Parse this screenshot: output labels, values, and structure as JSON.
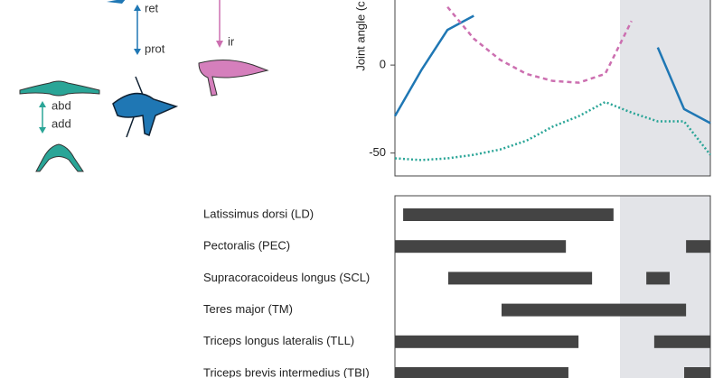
{
  "figure": {
    "labels": {
      "ret": "ret",
      "prot": "prot",
      "ir": "ir",
      "abd": "abd",
      "add": "add"
    }
  },
  "chart_data": [
    {
      "type": "line",
      "ylabel": "Joint angle (c",
      "ylim": [
        -63,
        38
      ],
      "yticks": [
        0,
        -50
      ],
      "series": [
        {
          "name": null,
          "color": "#1f77b4",
          "style": "solid",
          "values": [
            -29,
            -3,
            20,
            28,
            null,
            null,
            null,
            null,
            null,
            null,
            10,
            -25,
            -33
          ]
        },
        {
          "name": null,
          "color": "#cc6fb0",
          "style": "dashed",
          "values": [
            null,
            null,
            33,
            15,
            3,
            -5,
            -9,
            -10,
            -5,
            25,
            null,
            null,
            null
          ]
        },
        {
          "name": null,
          "color": "#2aa597",
          "style": "dotted",
          "values": [
            -53,
            -54,
            -53,
            -51,
            -48,
            -43,
            -35,
            -29,
            -21,
            -27,
            -32,
            -32,
            -51
          ]
        }
      ]
    },
    {
      "type": "range",
      "xlim": [
        0,
        100
      ],
      "color": "#444",
      "categories": [
        "Latissimus dorsi (LD)",
        "Pectoralis (PEC)",
        "Supracoracoideus longus (SCL)",
        "Teres major (TM)",
        "Triceps longus lateralis (TLL)",
        "Triceps brevis intermedius (TBI)"
      ],
      "bars": [
        [
          [
            2.6,
            69.3
          ]
        ],
        [
          [
            0,
            54.2
          ],
          [
            92.3,
            100
          ]
        ],
        [
          [
            16.9,
            62.5
          ],
          [
            79.7,
            87.1
          ]
        ],
        [
          [
            33.8,
            92.3
          ]
        ],
        [
          [
            0,
            58.2
          ],
          [
            82.2,
            100
          ]
        ],
        [
          [
            0,
            55
          ],
          [
            91.7,
            100
          ]
        ]
      ]
    }
  ]
}
